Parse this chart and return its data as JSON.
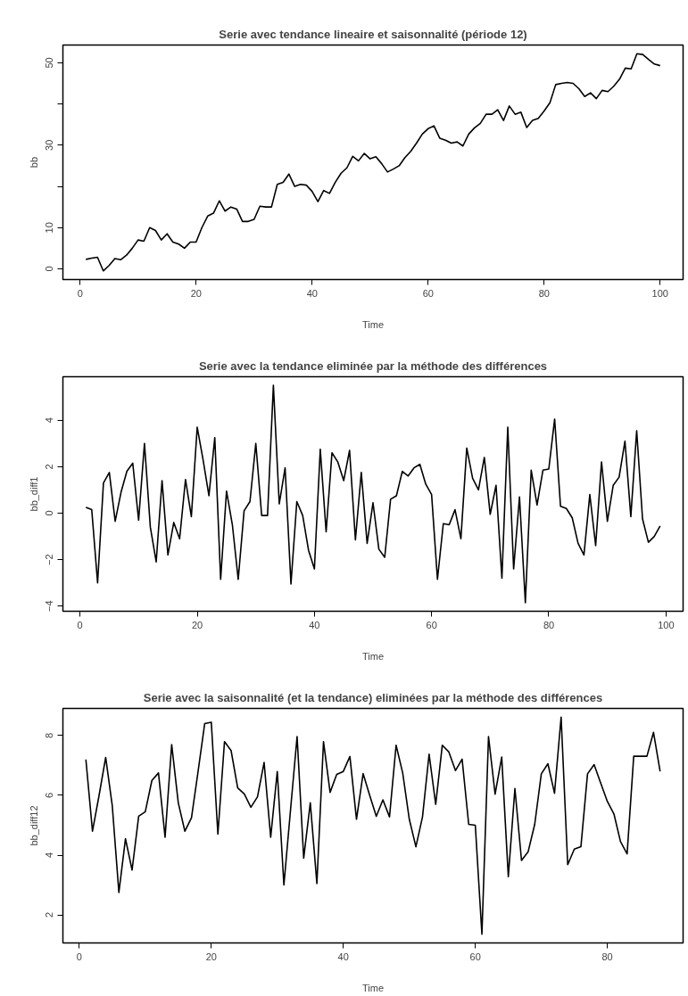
{
  "chart_data": [
    {
      "type": "line",
      "title": "Serie avec tendance lineaire et saisonnalité (période 12)",
      "xlabel": "Time",
      "ylabel": "bb",
      "xlim": [
        -2.96,
        103.96
      ],
      "xticks": [
        0,
        20,
        40,
        60,
        80,
        100
      ],
      "ylim": [
        -2.6,
        54.3
      ],
      "yticks": [
        0,
        10,
        {
          "value": 20,
          "label": null
        },
        30,
        {
          "value": 40,
          "label": null
        },
        50
      ],
      "series": [
        {
          "color": "#000000",
          "x": [
            1,
            2,
            3,
            4,
            5,
            6,
            7,
            8,
            9,
            10,
            11,
            12,
            13,
            14,
            15,
            16,
            17,
            18,
            19,
            20,
            21,
            22,
            23,
            24,
            25,
            26,
            27,
            28,
            29,
            30,
            31,
            32,
            33,
            34,
            35,
            36,
            37,
            38,
            39,
            40,
            41,
            42,
            43,
            44,
            45,
            46,
            47,
            48,
            49,
            50,
            51,
            52,
            53,
            54,
            55,
            56,
            57,
            58,
            59,
            60,
            61,
            62,
            63,
            64,
            65,
            66,
            67,
            68,
            69,
            70,
            71,
            72,
            73,
            74,
            75,
            76,
            77,
            78,
            79,
            80,
            81,
            82,
            83,
            84,
            85,
            86,
            87,
            88,
            89,
            90,
            91,
            92,
            93,
            94,
            95,
            96,
            97,
            98,
            99,
            100
          ],
          "values": [
            2.3,
            2.6,
            2.8,
            -0.5,
            0.8,
            2.5,
            2.2,
            3.3,
            5,
            7,
            6.7,
            10,
            9.3,
            7,
            8.5,
            6.5,
            6,
            5,
            6.5,
            6.5,
            10,
            12.8,
            13.5,
            16.5,
            14,
            15,
            14.5,
            11.5,
            11.5,
            12,
            15.2,
            15,
            15,
            20.5,
            21,
            23,
            20,
            20.5,
            20.3,
            18.8,
            16.3,
            19,
            18.3,
            21,
            23.2,
            24.5,
            27.3,
            26.2,
            28,
            26.7,
            27.2,
            25.5,
            23.5,
            24.2,
            25,
            27,
            28.5,
            30.5,
            32.7,
            34,
            34.7,
            31.7,
            31.2,
            30.5,
            30.8,
            29.8,
            32.7,
            34.2,
            35.3,
            37.5,
            37.5,
            38.6,
            36,
            39.5,
            37.5,
            38,
            34.3,
            36,
            36.5,
            38.3,
            40.3,
            44.7,
            45,
            45.2,
            45,
            43.7,
            41.8,
            42.7,
            41.3,
            43.3,
            43,
            44.3,
            46,
            48.7,
            48.5,
            52.2,
            52,
            50.8,
            49.7,
            49.3
          ]
        }
      ]
    },
    {
      "type": "line",
      "title": "Serie avec la tendance eliminée par la méthode des différences",
      "xlabel": "Time",
      "ylabel": "bb_diff1",
      "xlim": [
        -2.92,
        102.92
      ],
      "xticks": [
        0,
        20,
        40,
        60,
        80,
        100
      ],
      "ylim": [
        -4.22,
        5.87
      ],
      "yticks": [
        -4,
        -2,
        0,
        2,
        4
      ],
      "series": [
        {
          "color": "#000000",
          "x": [
            1,
            2,
            3,
            4,
            5,
            6,
            7,
            8,
            9,
            10,
            11,
            12,
            13,
            14,
            15,
            16,
            17,
            18,
            19,
            20,
            21,
            22,
            23,
            24,
            25,
            26,
            27,
            28,
            29,
            30,
            31,
            32,
            33,
            34,
            35,
            36,
            37,
            38,
            39,
            40,
            41,
            42,
            43,
            44,
            45,
            46,
            47,
            48,
            49,
            50,
            51,
            52,
            53,
            54,
            55,
            56,
            57,
            58,
            59,
            60,
            61,
            62,
            63,
            64,
            65,
            66,
            67,
            68,
            69,
            70,
            71,
            72,
            73,
            74,
            75,
            76,
            77,
            78,
            79,
            80,
            81,
            82,
            83,
            84,
            85,
            86,
            87,
            88,
            89,
            90,
            91,
            92,
            93,
            94,
            95,
            96,
            97,
            98,
            99
          ],
          "values": [
            0.25,
            0.15,
            -3.0,
            1.3,
            1.75,
            -0.35,
            0.9,
            1.8,
            2.15,
            -0.3,
            3.0,
            -0.6,
            -2.1,
            1.4,
            -1.8,
            -0.4,
            -1.1,
            1.45,
            -0.15,
            3.7,
            2.3,
            0.75,
            3.25,
            -2.85,
            0.95,
            -0.5,
            -2.85,
            0.1,
            0.5,
            3.0,
            -0.1,
            -0.1,
            5.5,
            0.4,
            1.95,
            -3.05,
            0.5,
            -0.1,
            -1.6,
            -2.4,
            2.75,
            -0.8,
            2.6,
            2.2,
            1.4,
            2.7,
            -1.15,
            1.75,
            -1.3,
            0.45,
            -1.55,
            -1.9,
            0.6,
            0.75,
            1.8,
            1.6,
            1.95,
            2.1,
            1.25,
            0.8,
            -2.85,
            -0.45,
            -0.5,
            0.15,
            -1.1,
            2.8,
            1.5,
            1.0,
            2.4,
            -0.05,
            1.2,
            -2.8,
            3.7,
            -2.4,
            0.7,
            -3.85,
            1.85,
            0.35,
            1.85,
            1.9,
            4.05,
            0.3,
            0.2,
            -0.2,
            -1.3,
            -1.8,
            0.8,
            -1.4,
            2.2,
            -0.35,
            1.2,
            1.55,
            3.1,
            -0.15,
            3.55,
            -0.25,
            -1.25,
            -1.0,
            -0.55
          ]
        }
      ]
    },
    {
      "type": "line",
      "title": "Serie avec la saisonnalité (et la tendance) eliminées par la méthode des différences",
      "xlabel": "Time",
      "ylabel": "bb_diff12",
      "xlim": [
        -2.48,
        91.48
      ],
      "xticks": [
        0,
        20,
        40,
        60,
        80
      ],
      "ylim": [
        1.06,
        8.91
      ],
      "yticks": [
        2,
        4,
        6,
        8
      ],
      "series": [
        {
          "color": "#000000",
          "x": [
            1,
            2,
            3,
            4,
            5,
            6,
            7,
            8,
            9,
            10,
            11,
            12,
            13,
            14,
            15,
            16,
            17,
            18,
            19,
            20,
            21,
            22,
            23,
            24,
            25,
            26,
            27,
            28,
            29,
            30,
            31,
            32,
            33,
            34,
            35,
            36,
            37,
            38,
            39,
            40,
            41,
            42,
            43,
            44,
            45,
            46,
            47,
            48,
            49,
            50,
            51,
            52,
            53,
            54,
            55,
            56,
            57,
            58,
            59,
            60,
            61,
            62,
            63,
            64,
            65,
            66,
            67,
            68,
            69,
            70,
            71,
            72,
            73,
            74,
            75,
            76,
            77,
            78,
            79,
            80,
            81,
            82,
            83,
            84,
            85,
            86,
            87,
            88
          ],
          "values": [
            7.2,
            4.8,
            6.0,
            7.27,
            5.65,
            2.75,
            4.55,
            3.5,
            5.3,
            5.45,
            6.5,
            6.75,
            4.6,
            7.7,
            5.75,
            4.8,
            5.25,
            6.8,
            8.4,
            8.45,
            4.7,
            7.8,
            7.5,
            6.25,
            6.05,
            5.6,
            5.95,
            7.1,
            4.6,
            6.8,
            3.0,
            5.5,
            7.97,
            3.9,
            5.75,
            3.05,
            7.8,
            6.1,
            6.7,
            6.8,
            7.3,
            5.2,
            6.73,
            6.0,
            5.3,
            5.85,
            5.28,
            7.68,
            6.75,
            5.2,
            4.28,
            5.28,
            7.38,
            5.7,
            7.68,
            7.45,
            6.83,
            7.21,
            5.03,
            5.0,
            1.35,
            7.97,
            6.04,
            7.28,
            3.28,
            6.23,
            3.82,
            4.11,
            5.03,
            6.72,
            7.06,
            6.07,
            8.62,
            3.68,
            4.2,
            4.28,
            6.72,
            7.03,
            6.41,
            5.8,
            5.38,
            4.45,
            4.04,
            7.31,
            7.31,
            7.31,
            8.11,
            6.8
          ]
        }
      ]
    }
  ]
}
